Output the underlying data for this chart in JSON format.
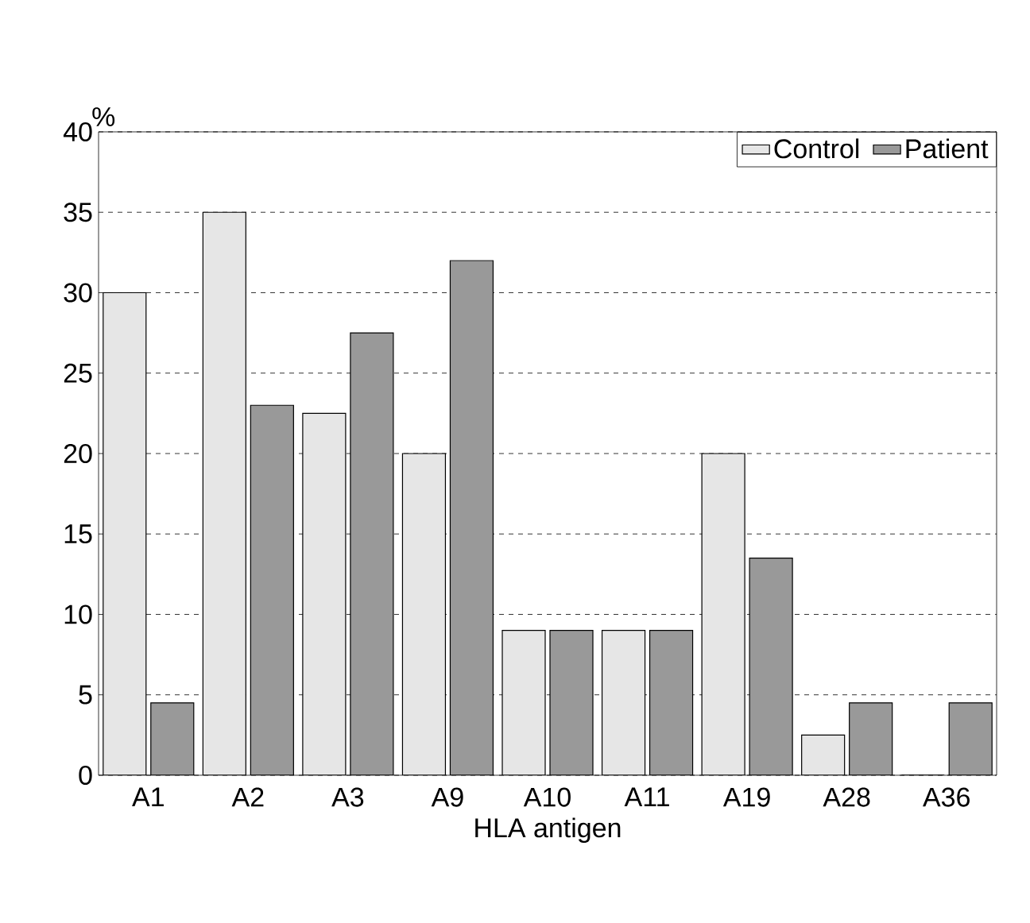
{
  "chart_data": {
    "type": "bar",
    "xlabel": "HLA antigen",
    "ylabel": "%",
    "categories": [
      "A1",
      "A2",
      "A3",
      "A9",
      "A10",
      "A11",
      "A19",
      "A28",
      "A36"
    ],
    "series": [
      {
        "name": "Control",
        "color": "#e6e6e6",
        "values": [
          30,
          35,
          22.5,
          20,
          9,
          9,
          20,
          2.5,
          0
        ]
      },
      {
        "name": "Patient",
        "color": "#999999",
        "values": [
          4.5,
          23,
          27.5,
          32,
          9,
          9,
          13.5,
          4.5,
          4.5
        ]
      }
    ],
    "ylim": [
      0,
      40
    ],
    "yticks": [
      0,
      5,
      10,
      15,
      20,
      25,
      30,
      35,
      40
    ],
    "grid": "y",
    "legend": "top right"
  }
}
